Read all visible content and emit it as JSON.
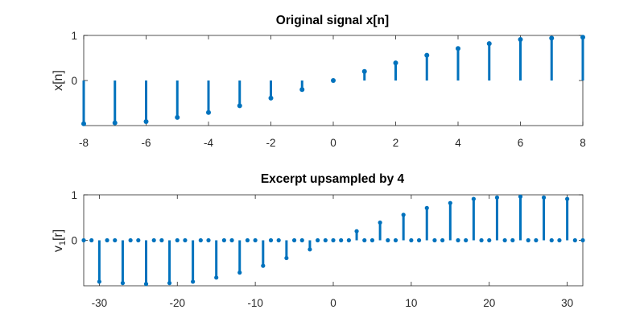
{
  "chart_data": [
    {
      "type": "stem",
      "title": "Original signal x[n]",
      "ylabel": "x[n]",
      "xlim": [
        -8,
        8
      ],
      "ylim": [
        -1,
        1
      ],
      "xticks": [
        -8,
        -6,
        -4,
        -2,
        0,
        2,
        4,
        6,
        8
      ],
      "xtick_labels": [
        "-8",
        "-6",
        "-4",
        "-2",
        "0",
        "2",
        "4",
        "6",
        "8"
      ],
      "yticks": [
        0,
        1
      ],
      "ytick_labels": [
        "0",
        "1"
      ],
      "color": "#0072BD",
      "x": [
        -8,
        -7,
        -6,
        -5,
        -4,
        -3,
        -2,
        -1,
        0,
        1,
        2,
        3,
        4,
        5,
        6,
        7,
        8
      ],
      "y": [
        -0.96,
        -0.94,
        -0.91,
        -0.82,
        -0.71,
        -0.56,
        -0.39,
        -0.2,
        0.0,
        0.2,
        0.39,
        0.56,
        0.71,
        0.82,
        0.91,
        0.94,
        0.96
      ]
    },
    {
      "type": "stem",
      "title": "Excerpt upsampled by 4",
      "ylabel_main": "v",
      "ylabel_sub": "1",
      "ylabel_tail": "[r]",
      "xlim": [
        -32,
        32
      ],
      "ylim": [
        -1,
        1
      ],
      "xticks": [
        -30,
        -20,
        -10,
        0,
        10,
        20,
        30
      ],
      "xtick_labels": [
        "-30",
        "-20",
        "-10",
        "0",
        "10",
        "20",
        "30"
      ],
      "yticks": [
        0,
        1
      ],
      "ytick_labels": [
        "0",
        "1"
      ],
      "color": "#0072BD",
      "x": [
        -32,
        -31,
        -30,
        -29,
        -28,
        -27,
        -26,
        -25,
        -24,
        -23,
        -22,
        -21,
        -20,
        -19,
        -18,
        -17,
        -16,
        -15,
        -14,
        -13,
        -12,
        -11,
        -10,
        -9,
        -8,
        -7,
        -6,
        -5,
        -4,
        -3,
        -2,
        -1,
        0,
        1,
        2,
        3,
        4,
        5,
        6,
        7,
        8,
        9,
        10,
        11,
        12,
        13,
        14,
        15,
        16,
        17,
        18,
        19,
        20,
        21,
        22,
        23,
        24,
        25,
        26,
        27,
        28,
        29,
        30,
        31,
        32
      ],
      "y": [
        0,
        0,
        -0.91,
        0,
        0,
        -0.94,
        0,
        0,
        -0.96,
        0,
        0,
        -0.94,
        0,
        0,
        -0.91,
        0,
        0,
        -0.82,
        0,
        0,
        -0.71,
        0,
        0,
        -0.56,
        0,
        0,
        -0.39,
        0,
        0,
        -0.2,
        0,
        0,
        0,
        0,
        0,
        0.2,
        0,
        0,
        0.39,
        0,
        0,
        0.56,
        0,
        0,
        0.71,
        0,
        0,
        0.82,
        0,
        0,
        0.91,
        0,
        0,
        0.94,
        0,
        0,
        0.96,
        0,
        0,
        0.94,
        0,
        0,
        0.91,
        0,
        0
      ]
    }
  ]
}
